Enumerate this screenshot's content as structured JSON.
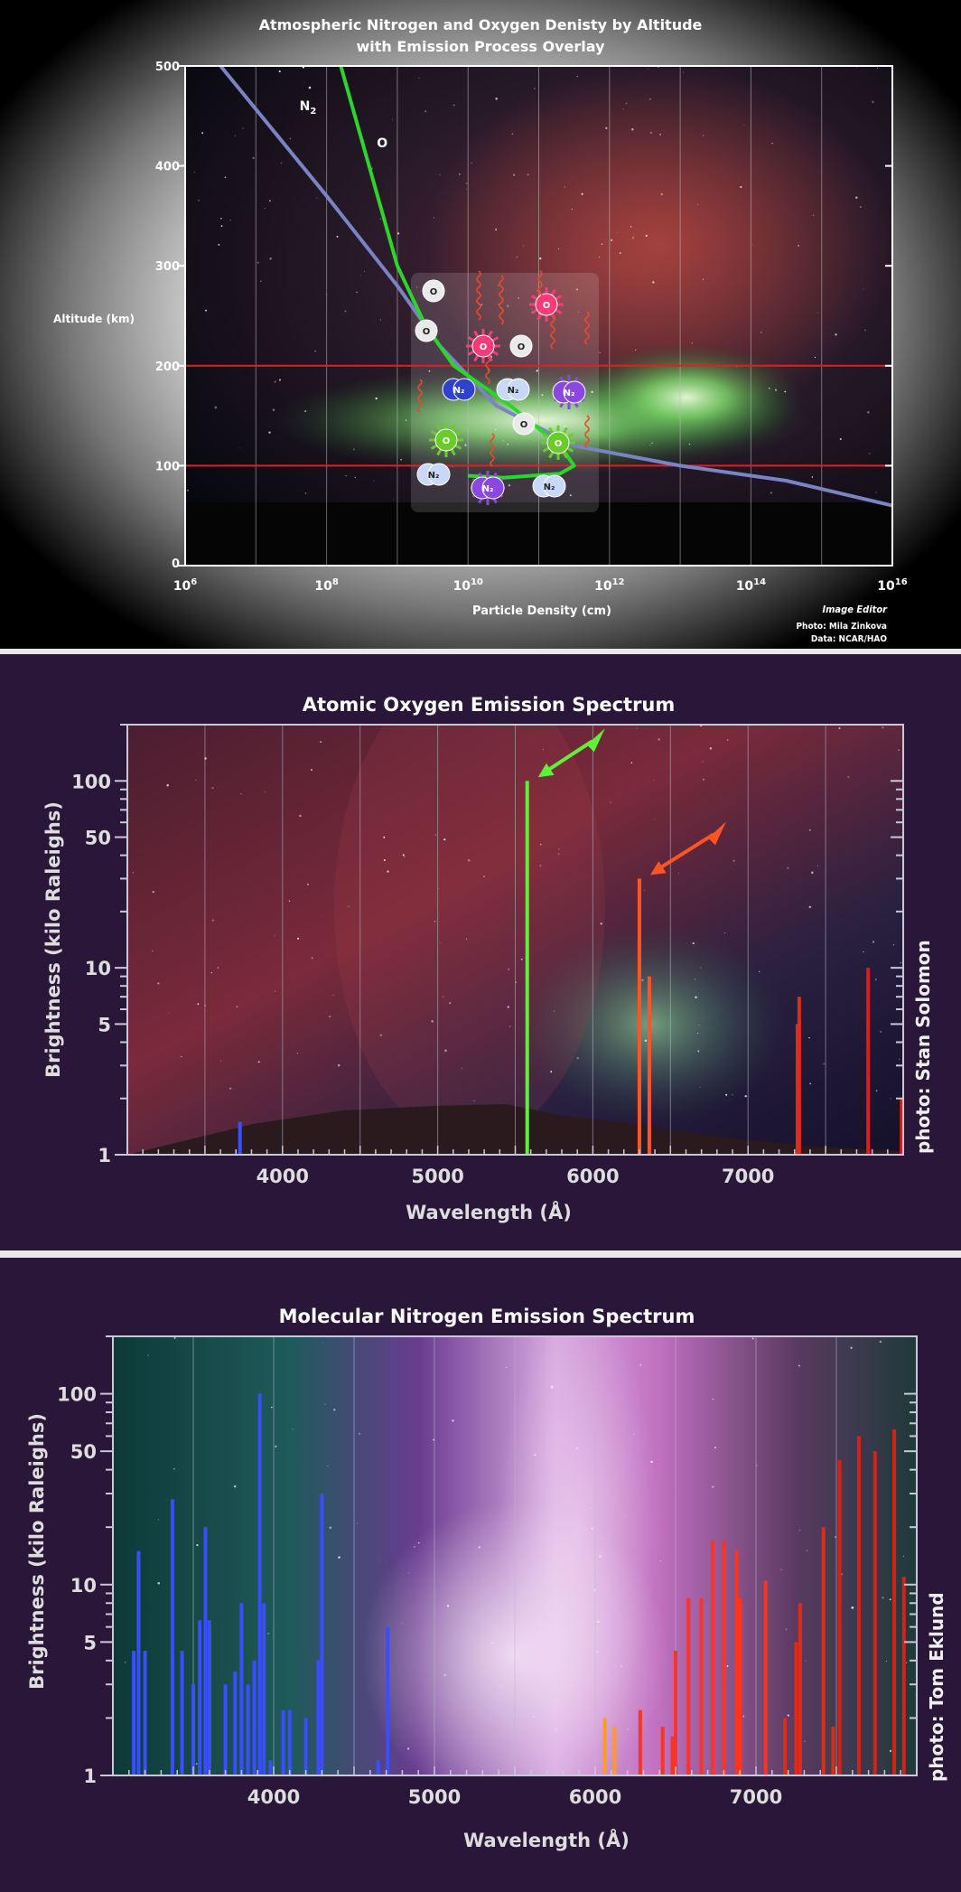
{
  "panel1": {
    "chart_data": {
      "type": "line",
      "title_line1": "Atmospheric Nitrogen and Oxygen Denisty by Altitude",
      "title_line2": "with Emission Process Overlay",
      "xlabel": "Particle Density  (cm)",
      "ylabel": "Altitude (km)",
      "x_scale": "log",
      "xlim_exp": [
        6,
        16
      ],
      "x_tick_exps": [
        6,
        8,
        10,
        12,
        14,
        16
      ],
      "x_tick_base": "10",
      "ylim": [
        0,
        500
      ],
      "y_ticks": [
        "0",
        "100",
        "200",
        "300",
        "400",
        "500"
      ],
      "reference_lines_km": [
        100,
        200
      ],
      "series": [
        {
          "name": "N2",
          "color": "#7a84c4",
          "x_exp": [
            6.5,
            8.0,
            9.0,
            9.6,
            10.4,
            11.5,
            13.0,
            14.5,
            16.0
          ],
          "y": [
            500,
            370,
            280,
            220,
            160,
            120,
            100,
            85,
            60
          ]
        },
        {
          "name": "O",
          "color": "#2bd62b",
          "x_exp": [
            8.2,
            8.6,
            9.0,
            9.4,
            9.8,
            10.6,
            11.3,
            11.5,
            11.3,
            10.5,
            10.0
          ],
          "y": [
            500,
            400,
            300,
            240,
            200,
            160,
            120,
            100,
            92,
            88,
            90
          ]
        }
      ],
      "annotations": [
        "O",
        "O",
        "O",
        "O",
        "O",
        "O",
        "O",
        "O",
        "O",
        "O",
        "N₂",
        "N₂",
        "N₂",
        "N₂",
        "N₂",
        "N₂"
      ]
    },
    "credits": {
      "logo": "Image Editor",
      "photo": "Photo: Mila Zinkova",
      "data": "Data: NCAR/HAO"
    }
  },
  "panel2": {
    "chart_data": {
      "type": "bar",
      "title": "Atomic Oxygen Emission Spectrum",
      "xlabel": "Wavelength (Å)",
      "ylabel": "Brightness (kilo Raleighs)",
      "x_scale": "linear",
      "xlim": [
        3000,
        8000
      ],
      "x_ticks": [
        4000,
        5000,
        6000,
        7000
      ],
      "y_scale": "log",
      "ylim": [
        1,
        200
      ],
      "y_ticks": [
        1,
        5,
        10,
        50,
        100
      ],
      "lines": [
        {
          "x": 3726,
          "y": 1.5,
          "color": "#3a4dff"
        },
        {
          "x": 5577,
          "y": 100,
          "color": "#5ff03a"
        },
        {
          "x": 6300,
          "y": 30,
          "color": "#ff5522"
        },
        {
          "x": 6364,
          "y": 9,
          "color": "#ff5522"
        },
        {
          "x": 7319,
          "y": 5,
          "color": "#e02a1a"
        },
        {
          "x": 7330,
          "y": 7,
          "color": "#e02a1a"
        },
        {
          "x": 7774,
          "y": 10,
          "color": "#d82016"
        },
        {
          "x": 7990,
          "y": 2,
          "color": "#d82016"
        }
      ],
      "arrows_at": [
        5577,
        6300
      ]
    },
    "credit": "photo: Stan Solomon"
  },
  "panel3": {
    "chart_data": {
      "type": "bar",
      "title": "Molecular Nitrogen Emission Spectrum",
      "xlabel": "Wavelength (Å)",
      "ylabel": "Brightness (kilo Raleighs)",
      "x_scale": "linear",
      "xlim": [
        3000,
        8000
      ],
      "x_ticks": [
        4000,
        5000,
        6000,
        7000
      ],
      "y_scale": "log",
      "ylim": [
        1,
        200
      ],
      "y_ticks": [
        1,
        5,
        10,
        50,
        100
      ],
      "lines": [
        {
          "x": 3130,
          "y": 4.5,
          "color": "#3a4dff"
        },
        {
          "x": 3160,
          "y": 15,
          "color": "#3a4dff"
        },
        {
          "x": 3200,
          "y": 4.5,
          "color": "#3a4dff"
        },
        {
          "x": 3370,
          "y": 28,
          "color": "#3a4dff"
        },
        {
          "x": 3430,
          "y": 4.5,
          "color": "#3a4dff"
        },
        {
          "x": 3500,
          "y": 3,
          "color": "#3a4dff"
        },
        {
          "x": 3540,
          "y": 6.5,
          "color": "#3a4dff"
        },
        {
          "x": 3576,
          "y": 20,
          "color": "#3a4dff"
        },
        {
          "x": 3600,
          "y": 6.5,
          "color": "#3a4dff"
        },
        {
          "x": 3700,
          "y": 3,
          "color": "#3a4dff"
        },
        {
          "x": 3760,
          "y": 3.5,
          "color": "#3a4dff"
        },
        {
          "x": 3800,
          "y": 8,
          "color": "#3a4dff"
        },
        {
          "x": 3840,
          "y": 3,
          "color": "#3a4dff"
        },
        {
          "x": 3880,
          "y": 4,
          "color": "#3a4dff"
        },
        {
          "x": 3914,
          "y": 100,
          "color": "#3a4dff"
        },
        {
          "x": 3940,
          "y": 8,
          "color": "#3a4dff"
        },
        {
          "x": 3980,
          "y": 1.2,
          "color": "#3a4dff"
        },
        {
          "x": 4060,
          "y": 2.2,
          "color": "#3a4dff"
        },
        {
          "x": 4100,
          "y": 2.2,
          "color": "#3a4dff"
        },
        {
          "x": 4200,
          "y": 2,
          "color": "#3a4dff"
        },
        {
          "x": 4278,
          "y": 4,
          "color": "#3a4dff"
        },
        {
          "x": 4300,
          "y": 30,
          "color": "#3a4dff"
        },
        {
          "x": 4650,
          "y": 1.2,
          "color": "#3a4dff"
        },
        {
          "x": 4709,
          "y": 6,
          "color": "#3a4dff"
        },
        {
          "x": 6060,
          "y": 2,
          "color": "#ff9a22"
        },
        {
          "x": 6120,
          "y": 1.8,
          "color": "#ff9a22"
        },
        {
          "x": 6280,
          "y": 2.2,
          "color": "#ff3322"
        },
        {
          "x": 6420,
          "y": 1.8,
          "color": "#ff3322"
        },
        {
          "x": 6480,
          "y": 1.6,
          "color": "#ff3322"
        },
        {
          "x": 6500,
          "y": 4.5,
          "color": "#ff3322"
        },
        {
          "x": 6580,
          "y": 8.5,
          "color": "#ff3322"
        },
        {
          "x": 6660,
          "y": 8.5,
          "color": "#ff3322"
        },
        {
          "x": 6730,
          "y": 17,
          "color": "#ff3322"
        },
        {
          "x": 6800,
          "y": 17,
          "color": "#ff3322"
        },
        {
          "x": 6880,
          "y": 15,
          "color": "#ff3322"
        },
        {
          "x": 6900,
          "y": 8.5,
          "color": "#ff3322"
        },
        {
          "x": 7060,
          "y": 10.5,
          "color": "#ff3322"
        },
        {
          "x": 7180,
          "y": 2,
          "color": "#e02a1a"
        },
        {
          "x": 7250,
          "y": 5,
          "color": "#e02a1a"
        },
        {
          "x": 7275,
          "y": 8,
          "color": "#e02a1a"
        },
        {
          "x": 7420,
          "y": 20,
          "color": "#e02a1a"
        },
        {
          "x": 7480,
          "y": 1.8,
          "color": "#e02a1a"
        },
        {
          "x": 7520,
          "y": 45,
          "color": "#d82016"
        },
        {
          "x": 7640,
          "y": 60,
          "color": "#d82016"
        },
        {
          "x": 7740,
          "y": 50,
          "color": "#d82016"
        },
        {
          "x": 7860,
          "y": 65,
          "color": "#d82016"
        },
        {
          "x": 7920,
          "y": 11,
          "color": "#d82016"
        }
      ]
    },
    "credit": "photo: Tom Eklund"
  }
}
